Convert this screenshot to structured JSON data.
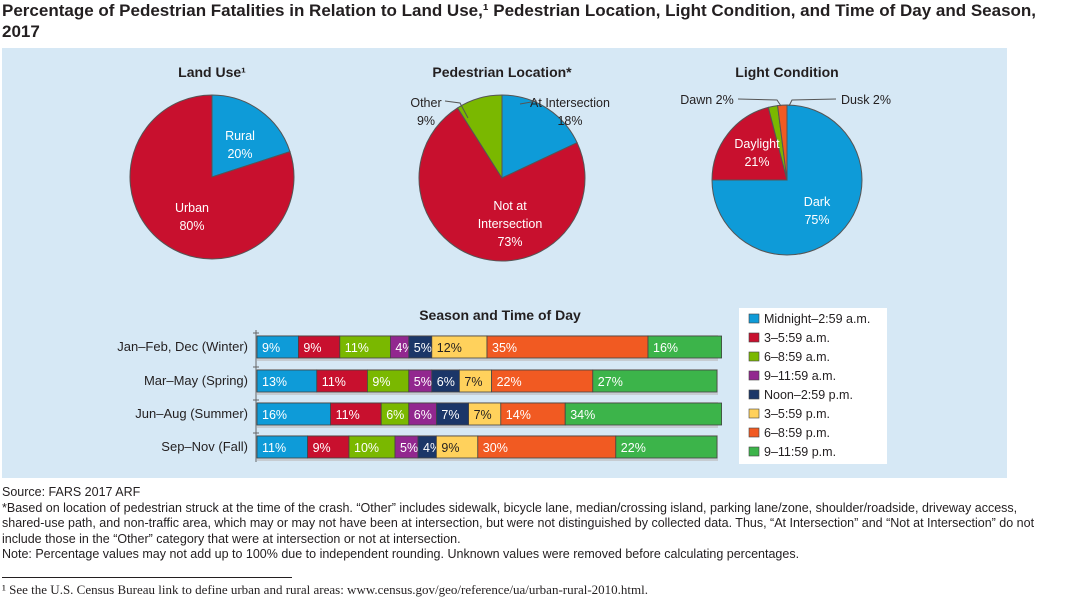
{
  "title": "Percentage of Pedestrian Fatalities in Relation to Land Use,¹ Pedestrian Location, Light Condition, and Time of Day and Season, 2017",
  "chart_data": [
    {
      "type": "pie",
      "title": "Land Use¹",
      "slices": [
        {
          "label": "Rural",
          "value": 20,
          "color": "#0e9bd8"
        },
        {
          "label": "Urban",
          "value": 80,
          "color": "#c8102e"
        }
      ]
    },
    {
      "type": "pie",
      "title": "Pedestrian Location*",
      "slices": [
        {
          "label": "At Intersection",
          "value": 18,
          "color": "#0e9bd8"
        },
        {
          "label": "Not at Intersection",
          "value": 73,
          "color": "#c8102e"
        },
        {
          "label": "Other",
          "value": 9,
          "color": "#7ab800"
        }
      ]
    },
    {
      "type": "pie",
      "title": "Light Condition",
      "slices": [
        {
          "label": "Dark",
          "value": 75,
          "color": "#0e9bd8"
        },
        {
          "label": "Daylight",
          "value": 21,
          "color": "#c8102e"
        },
        {
          "label": "Dawn",
          "value": 2,
          "color": "#7ab800"
        },
        {
          "label": "Dusk",
          "value": 2,
          "color": "#f15a22"
        }
      ]
    },
    {
      "type": "bar",
      "stacked": true,
      "orientation": "horizontal",
      "title": "Season and Time of Day",
      "legend": "right",
      "categories": [
        "Jan–Feb, Dec (Winter)",
        "Mar–May (Spring)",
        "Jun–Aug (Summer)",
        "Sep–Nov (Fall)"
      ],
      "series": [
        {
          "name": "Midnight–2:59 a.m.",
          "color": "#0e9bd8",
          "values": [
            9,
            13,
            16,
            11
          ]
        },
        {
          "name": "3–5:59 a.m.",
          "color": "#c8102e",
          "values": [
            9,
            11,
            11,
            9
          ]
        },
        {
          "name": "6–8:59 a.m.",
          "color": "#7ab800",
          "values": [
            11,
            9,
            6,
            10
          ]
        },
        {
          "name": "9–11:59 a.m.",
          "color": "#92278f",
          "values": [
            4,
            5,
            6,
            5
          ]
        },
        {
          "name": "Noon–2:59 p.m.",
          "color": "#1b3668",
          "values": [
            5,
            6,
            7,
            4
          ]
        },
        {
          "name": "3–5:59 p.m.",
          "color": "#ffd15c",
          "values": [
            12,
            7,
            7,
            9
          ]
        },
        {
          "name": "6–8:59 p.m.",
          "color": "#f15a22",
          "values": [
            35,
            22,
            14,
            30
          ]
        },
        {
          "name": "9–11:59 p.m.",
          "color": "#3cb44a",
          "values": [
            16,
            27,
            34,
            22
          ]
        }
      ]
    }
  ],
  "notes": {
    "source": "Source: FARS 2017 ARF",
    "asterisk": "*Based on location of pedestrian struck at the time of the crash. “Other” includes sidewalk, bicycle lane, median/crossing island, parking lane/zone, shoulder/roadside, driveway access, shared-use path, and non-traffic area, which may or may not have been at intersection, but were not distinguished by collected data. Thus, “At Intersection” and “Not at Intersection” do not include those in the “Other” category that were at intersection or not at intersection.",
    "note": "Note: Percentage values may not add up to 100% due to independent rounding. Unknown values were removed before calculating percentages.",
    "footnote": "¹ See the U.S. Census Bureau link to define urban and rural areas: www.census.gov/geo/reference/ua/urban-rural-2010.html."
  }
}
